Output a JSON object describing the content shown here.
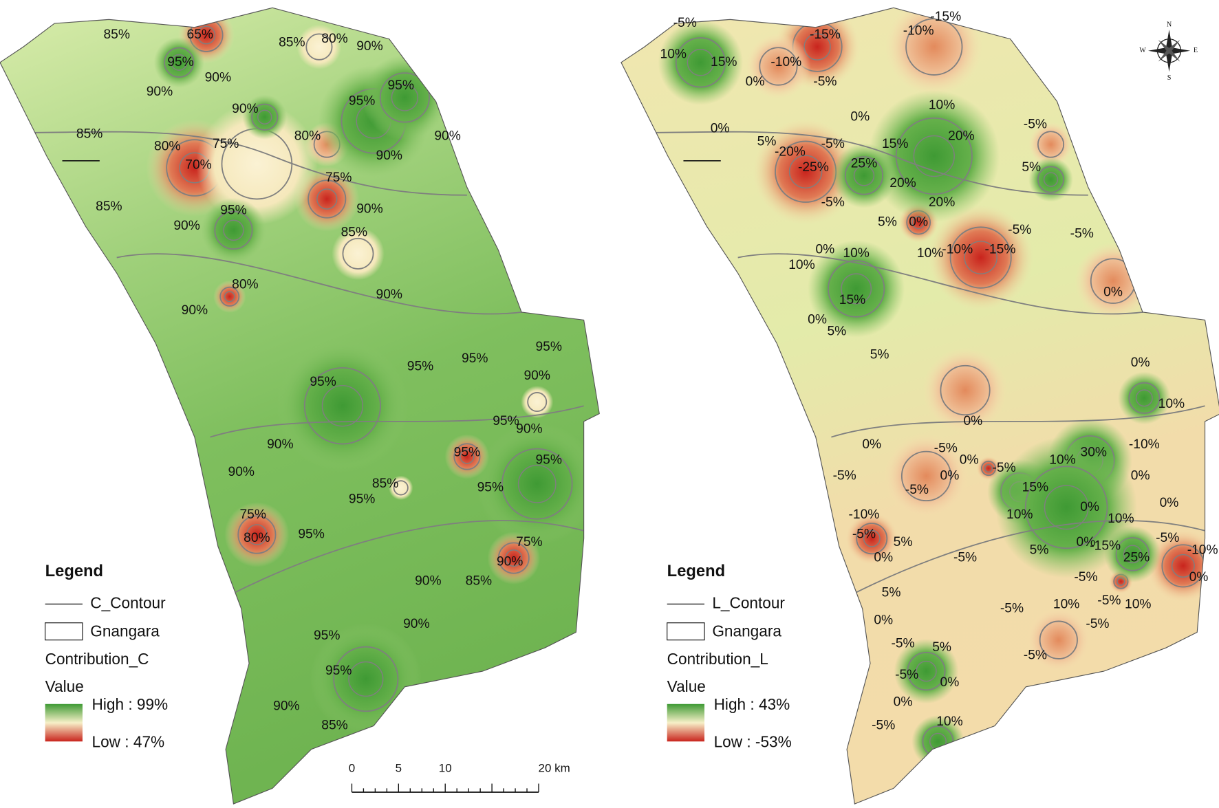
{
  "maps": [
    {
      "contour_labels": [
        "65%",
        "85%",
        "95%",
        "85%",
        "80%",
        "90%",
        "90%",
        "90%",
        "90%",
        "95%",
        "95%",
        "90%",
        "85%",
        "80%",
        "75%",
        "80%",
        "90%",
        "70%",
        "75%",
        "85%",
        "95%",
        "90%",
        "90%",
        "85%",
        "80%",
        "90%",
        "90%",
        "95%",
        "95%",
        "95%",
        "90%",
        "95%",
        "95%",
        "90%",
        "90%",
        "95%",
        "95%",
        "90%",
        "85%",
        "95%",
        "95%",
        "75%",
        "80%",
        "95%",
        "75%",
        "90%",
        "90%",
        "85%",
        "95%",
        "90%",
        "95%",
        "90%",
        "85%"
      ],
      "legend": {
        "title": "Legend",
        "contour": "C_Contour",
        "boundary": "Gnangara",
        "field": "Contribution_C",
        "value_title": "Value",
        "high": "High : 99%",
        "low": "Low : 47%"
      }
    },
    {
      "contour_labels": [
        "-5%",
        "10%",
        "15%",
        "-15%",
        "-10%",
        "-15%",
        "-10%",
        "-5%",
        "0%",
        "0%",
        "0%",
        "10%",
        "-5%",
        "5%",
        "-20%",
        "-5%",
        "15%",
        "20%",
        "5%",
        "-25%",
        "25%",
        "20%",
        "-5%",
        "0%",
        "5%",
        "20%",
        "-5%",
        "-5%",
        "-15%",
        "-10%",
        "10%",
        "0%",
        "10%",
        "10%",
        "15%",
        "0%",
        "0%",
        "5%",
        "5%",
        "0%",
        "10%",
        "0%",
        "0%",
        "-5%",
        "0%",
        "-5%",
        "30%",
        "10%",
        "-10%",
        "-5%",
        "15%",
        "0%",
        "0%",
        "-5%",
        "10%",
        "0%",
        "0%",
        "10%",
        "-10%",
        "-5%",
        "5%",
        "0%",
        "5%",
        "0%",
        "-15%",
        "25%",
        "-5%",
        "-10%",
        "0%",
        "-5%",
        "-5%",
        "-5%",
        "10%",
        "10%",
        "5%",
        "-5%",
        "-5%",
        "0%",
        "-5%",
        "5%",
        "-5%",
        "-5%",
        "0%",
        "0%",
        "10%",
        "-5%"
      ],
      "legend": {
        "title": "Legend",
        "contour": "L_Contour",
        "boundary": "Gnangara",
        "field": "Contribution_L",
        "value_title": "Value",
        "high": "High : 43%",
        "low": "Low : -53%"
      }
    }
  ],
  "scale_bar": {
    "labels": [
      "0",
      "5",
      "10",
      "20 km"
    ]
  },
  "compass": {
    "n": "N",
    "e": "E",
    "s": "S",
    "w": "W"
  }
}
